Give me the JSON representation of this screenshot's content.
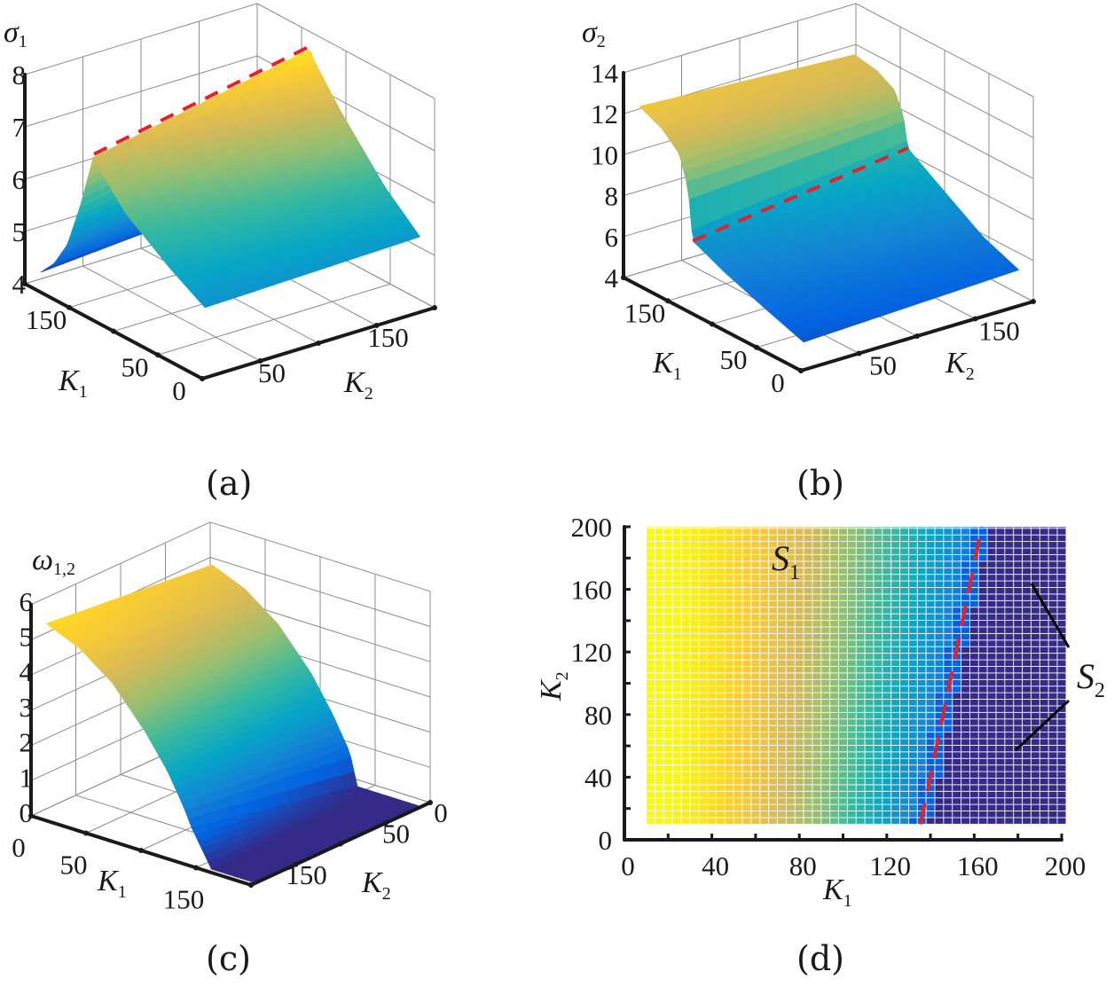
{
  "colors": {
    "dashed_line": "#e8202a",
    "axis": "#1a1a1a",
    "grid": "#8c8c8c",
    "annotation": "#000000"
  },
  "chart_data": [
    {
      "panel_label": "(a)",
      "type": "surface",
      "colormap": "parula",
      "zlabel": {
        "main": "σ",
        "sub": "1"
      },
      "xlabel": {
        "main": "K",
        "sub": "1"
      },
      "ylabel": {
        "main": "K",
        "sub": "2"
      },
      "zlim": [
        4,
        8
      ],
      "k1lim": [
        0,
        200
      ],
      "k2lim": [
        0,
        200
      ],
      "z_ticks": [
        "4",
        "5",
        "6",
        "7",
        "8"
      ],
      "k1_ticks": [
        "0",
        "50",
        "150"
      ],
      "k2_ticks": [
        "50",
        "150"
      ],
      "grid": true,
      "k2_samples": [
        10,
        195
      ],
      "k1": [
        10,
        50,
        100,
        130,
        135,
        150,
        165,
        180,
        195
      ],
      "z_at_k2_low": [
        5.2,
        5.6,
        6.2,
        6.8,
        7.0,
        5.9,
        5.0,
        4.5,
        4.2
      ],
      "z_at_k2_high": [
        5.3,
        5.9,
        6.9,
        7.6,
        7.8,
        6.6,
        5.6,
        4.9,
        4.5
      ],
      "dashed_line_k1": 135
    },
    {
      "panel_label": "(b)",
      "type": "surface",
      "colormap": "parula",
      "zlabel": {
        "main": "σ",
        "sub": "2"
      },
      "xlabel": {
        "main": "K",
        "sub": "1"
      },
      "ylabel": {
        "main": "K",
        "sub": "2"
      },
      "zlim": [
        4,
        14
      ],
      "k1lim": [
        0,
        200
      ],
      "k2lim": [
        0,
        200
      ],
      "z_ticks": [
        "4",
        "6",
        "8",
        "10",
        "12",
        "14"
      ],
      "k1_ticks": [
        "0",
        "50",
        "150"
      ],
      "k2_ticks": [
        "50",
        "150"
      ],
      "grid": true,
      "k2_samples": [
        10,
        195
      ],
      "k1": [
        10,
        50,
        100,
        135,
        140,
        150,
        170,
        195
      ],
      "z_at_k2_low": [
        5.0,
        5.6,
        6.4,
        7.1,
        9.5,
        11.0,
        11.8,
        12.3
      ],
      "z_at_k2_high": [
        5.4,
        6.1,
        7.5,
        8.5,
        10.0,
        11.0,
        11.5,
        11.7
      ],
      "dashed_line_k1": 135
    },
    {
      "panel_label": "(c)",
      "type": "surface",
      "colormap": "parula",
      "zlabel": {
        "main": "ω",
        "sub": "1,2"
      },
      "xlabel": {
        "main": "K",
        "sub": "1"
      },
      "ylabel": {
        "main": "K",
        "sub": "2"
      },
      "zlim": [
        0,
        6
      ],
      "k1lim": [
        0,
        200
      ],
      "k2lim": [
        0,
        200
      ],
      "z_ticks": [
        "0",
        "1",
        "2",
        "3",
        "4",
        "5",
        "6"
      ],
      "k1_ticks": [
        "0",
        "50",
        "150"
      ],
      "k2_ticks": [
        "0",
        "50",
        "150"
      ],
      "grid": true,
      "k2_samples": [
        10,
        195
      ],
      "k1": [
        10,
        40,
        70,
        100,
        120,
        135,
        142,
        160,
        200
      ],
      "z_at_k2_low": [
        5.0,
        4.6,
        3.9,
        2.8,
        1.8,
        0.9,
        0,
        0,
        0
      ],
      "z_at_k2_high": [
        5.5,
        5.1,
        4.4,
        3.3,
        2.4,
        1.5,
        1.0,
        0,
        0
      ]
    },
    {
      "panel_label": "(d)",
      "type": "heatmap",
      "colormap": "parula",
      "xlabel": {
        "main": "K",
        "sub": "1"
      },
      "ylabel": {
        "main": "K",
        "sub": "2"
      },
      "xlim": [
        0,
        200
      ],
      "ylim": [
        0,
        200
      ],
      "x_ticks": [
        "0",
        "40",
        "80",
        "120",
        "160",
        "200"
      ],
      "y_ticks": [
        "0",
        "40",
        "80",
        "120",
        "160",
        "200"
      ],
      "data_range": {
        "k1": [
          10,
          200
        ],
        "k2": [
          10,
          200
        ]
      },
      "boundary_line": {
        "k1": [
          135.5,
          163.5
        ],
        "k2": [
          10,
          200
        ],
        "style": "dashed"
      },
      "regions": [
        {
          "main": "S",
          "sub": "1"
        },
        {
          "main": "S",
          "sub": "2"
        }
      ]
    }
  ]
}
